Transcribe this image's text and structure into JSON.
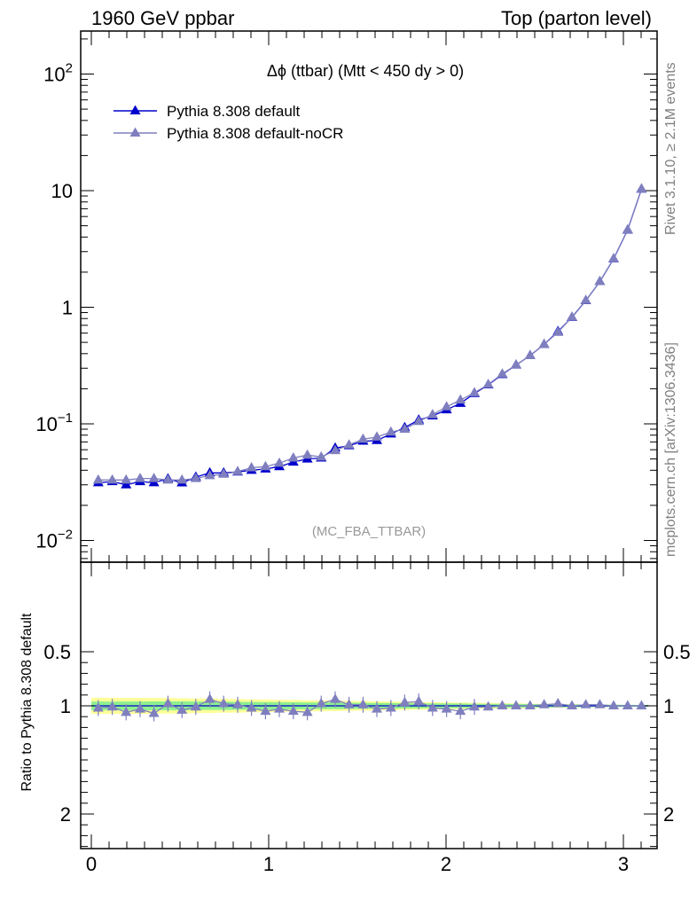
{
  "header": {
    "left": "1960 GeV ppbar",
    "right": "Top (parton level)"
  },
  "side": {
    "rivet": "Rivet 3.1.10, ≥ 2.1M events",
    "mcplots": "mcplots.cern.ch [arXiv:1306.3436]"
  },
  "colors": {
    "default": "#0000cc",
    "noCR": "#7f7fbf",
    "band_inner": "#8ef08e",
    "band_outer": "#ffff99"
  },
  "chart_data": [
    {
      "type": "line",
      "title": "Δϕ (ttbar) (Mtt < 450 dy > 0)",
      "watermark": "(MC_FBA_TTBAR)",
      "yscale": "log",
      "xlim": [
        -0.05,
        3.2
      ],
      "ylim": [
        0.006,
        230
      ],
      "ytick_labels": [
        "10⁻²",
        "10⁻¹",
        "1",
        "10",
        "10²"
      ],
      "legend_position": "top-left",
      "x": [
        0.039,
        0.118,
        0.196,
        0.275,
        0.353,
        0.432,
        0.511,
        0.589,
        0.668,
        0.746,
        0.825,
        0.903,
        0.982,
        1.06,
        1.139,
        1.218,
        1.296,
        1.375,
        1.453,
        1.532,
        1.61,
        1.689,
        1.767,
        1.846,
        1.924,
        2.003,
        2.081,
        2.16,
        2.238,
        2.317,
        2.395,
        2.474,
        2.553,
        2.631,
        2.71,
        2.788,
        2.867,
        2.945,
        3.024,
        3.102
      ],
      "series": [
        {
          "name": "Pythia 8.308 default",
          "values": [
            0.0313,
            0.032,
            0.03,
            0.032,
            0.0313,
            0.0338,
            0.0312,
            0.035,
            0.038,
            0.038,
            0.0387,
            0.04,
            0.041,
            0.043,
            0.047,
            0.05,
            0.051,
            0.062,
            0.065,
            0.071,
            0.072,
            0.082,
            0.093,
            0.108,
            0.117,
            0.132,
            0.15,
            0.182,
            0.216,
            0.265,
            0.32,
            0.385,
            0.48,
            0.62,
            0.82,
            1.14,
            1.66,
            2.6,
            4.6,
            10.3
          ]
        },
        {
          "name": "Pythia 8.308 default-noCR",
          "values": [
            0.033,
            0.033,
            0.033,
            0.034,
            0.034,
            0.033,
            0.033,
            0.034,
            0.036,
            0.037,
            0.039,
            0.042,
            0.043,
            0.046,
            0.051,
            0.054,
            0.052,
            0.059,
            0.066,
            0.074,
            0.077,
            0.085,
            0.09,
            0.105,
            0.12,
            0.14,
            0.16,
            0.185,
            0.218,
            0.268,
            0.32,
            0.385,
            0.48,
            0.61,
            0.825,
            1.145,
            1.66,
            2.61,
            4.62,
            10.35
          ]
        }
      ]
    },
    {
      "type": "line",
      "ylabel": "Ratio to Pythia 8.308 default",
      "xlim": [
        -0.05,
        3.2
      ],
      "ylim": [
        0.4,
        2.4
      ],
      "yticks": [
        0.5,
        1,
        2
      ],
      "xticks": [
        0,
        1,
        2,
        3
      ],
      "x": [
        0.039,
        0.118,
        0.196,
        0.275,
        0.353,
        0.432,
        0.511,
        0.589,
        0.668,
        0.746,
        0.825,
        0.903,
        0.982,
        1.06,
        1.139,
        1.218,
        1.296,
        1.375,
        1.453,
        1.532,
        1.61,
        1.689,
        1.767,
        1.846,
        1.924,
        2.003,
        2.081,
        2.16,
        2.238,
        2.317,
        2.395,
        2.474,
        2.553,
        2.631,
        2.71,
        2.788,
        2.867,
        2.945,
        3.024,
        3.102
      ],
      "series": [
        {
          "name": "Pythia 8.308 default-noCR",
          "values": [
            1.02,
            1.01,
            1.06,
            1.03,
            1.07,
            0.98,
            1.04,
            1.01,
            0.94,
            0.98,
            0.99,
            1.02,
            1.05,
            1.03,
            1.05,
            1.06,
            0.98,
            0.94,
            0.99,
            0.99,
            1.03,
            1.02,
            0.97,
            0.96,
            1.02,
            1.03,
            1.05,
            1.01,
            1.01,
            1.0,
            1.0,
            1.0,
            0.99,
            0.98,
            1.0,
            0.99,
            0.99,
            1.0,
            1.0,
            1.0
          ]
        }
      ],
      "band_inner_halfwidth": [
        0.04,
        0.039,
        0.04,
        0.04,
        0.041,
        0.041,
        0.041,
        0.04,
        0.038,
        0.038,
        0.037,
        0.036,
        0.035,
        0.034,
        0.033,
        0.032,
        0.031,
        0.03,
        0.029,
        0.028,
        0.027,
        0.026,
        0.025,
        0.024,
        0.023,
        0.022,
        0.021,
        0.02,
        0.019,
        0.018,
        0.017,
        0.016,
        0.015,
        0.014,
        0.013,
        0.012,
        0.011,
        0.01,
        0.009,
        0.008
      ],
      "band_outer_halfwidth": [
        0.075,
        0.075,
        0.074,
        0.074,
        0.073,
        0.072,
        0.07,
        0.068,
        0.066,
        0.064,
        0.062,
        0.06,
        0.058,
        0.056,
        0.054,
        0.052,
        0.05,
        0.048,
        0.046,
        0.044,
        0.042,
        0.04,
        0.038,
        0.036,
        0.034,
        0.032,
        0.03,
        0.028,
        0.026,
        0.024,
        0.022,
        0.02,
        0.018,
        0.016,
        0.014,
        0.012,
        0.01,
        0.009,
        0.008,
        0.007
      ]
    }
  ]
}
